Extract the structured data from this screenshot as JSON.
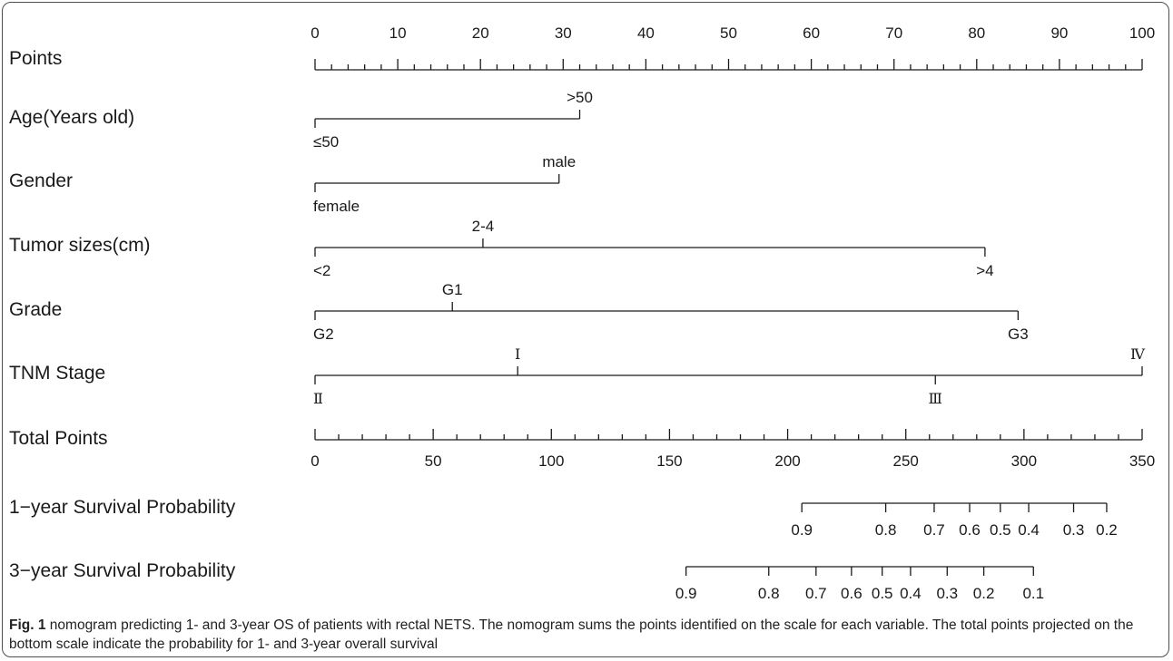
{
  "chart_data": {
    "type": "nomogram",
    "points_scale": {
      "label": "Points",
      "min": 0,
      "max": 100,
      "major_ticks": [
        0,
        10,
        20,
        30,
        40,
        50,
        60,
        70,
        80,
        90,
        100
      ],
      "minor_step": 2
    },
    "variables": [
      {
        "name": "Age(Years old)",
        "levels": [
          {
            "label": "≤50",
            "points": 0,
            "side": "below"
          },
          {
            "label": ">50",
            "points": 32,
            "side": "above"
          }
        ]
      },
      {
        "name": "Gender",
        "levels": [
          {
            "label": "female",
            "points": 0,
            "side": "below"
          },
          {
            "label": "male",
            "points": 29.5,
            "side": "above"
          }
        ]
      },
      {
        "name": "Tumor sizes(cm)",
        "levels": [
          {
            "label": "<2",
            "points": 0,
            "side": "below"
          },
          {
            "label": "2-4",
            "points": 20.3,
            "side": "above"
          },
          {
            "label": ">4",
            "points": 81,
            "side": "below"
          }
        ]
      },
      {
        "name": "Grade",
        "levels": [
          {
            "label": "G2",
            "points": 0,
            "side": "below"
          },
          {
            "label": "G1",
            "points": 16.6,
            "side": "above"
          },
          {
            "label": "G3",
            "points": 85,
            "side": "below"
          }
        ]
      },
      {
        "name": "TNM Stage",
        "levels": [
          {
            "label": "Ⅱ",
            "points": 0,
            "side": "below"
          },
          {
            "label": "Ⅰ",
            "points": 24.5,
            "side": "above"
          },
          {
            "label": "Ⅲ",
            "points": 75,
            "side": "below"
          },
          {
            "label": "Ⅳ",
            "points": 100,
            "side": "above"
          }
        ]
      }
    ],
    "total_points_scale": {
      "label": "Total Points",
      "min": 0,
      "max": 350,
      "major_ticks": [
        0,
        50,
        100,
        150,
        200,
        250,
        300,
        350
      ],
      "minor_step": 10
    },
    "probability_scales": [
      {
        "label": "1−year Survival Probability",
        "ticks": [
          {
            "label": "0.9",
            "total_points": 206
          },
          {
            "label": "0.8",
            "total_points": 241.5
          },
          {
            "label": "0.7",
            "total_points": 262
          },
          {
            "label": "0.6",
            "total_points": 277
          },
          {
            "label": "0.5",
            "total_points": 290
          },
          {
            "label": "0.4",
            "total_points": 302
          },
          {
            "label": "0.3",
            "total_points": 321
          },
          {
            "label": "0.2",
            "total_points": 335
          }
        ]
      },
      {
        "label": "3−year Survival Probability",
        "ticks": [
          {
            "label": "0.9",
            "total_points": 157
          },
          {
            "label": "0.8",
            "total_points": 192
          },
          {
            "label": "0.7",
            "total_points": 212
          },
          {
            "label": "0.6",
            "total_points": 227
          },
          {
            "label": "0.5",
            "total_points": 240
          },
          {
            "label": "0.4",
            "total_points": 252
          },
          {
            "label": "0.3",
            "total_points": 267.5
          },
          {
            "label": "0.2",
            "total_points": 283
          },
          {
            "label": "0.1",
            "total_points": 304
          }
        ]
      }
    ]
  },
  "caption": {
    "label": "Fig. 1",
    "text": " nomogram predicting 1- and 3-year OS of patients with rectal NETS. The nomogram sums the points identified on the scale for each variable. The total points projected on the bottom scale indicate the probability for 1- and 3-year overall survival"
  },
  "colors": {
    "ink": "#1a1a1a",
    "border": "#4d4d4d"
  }
}
